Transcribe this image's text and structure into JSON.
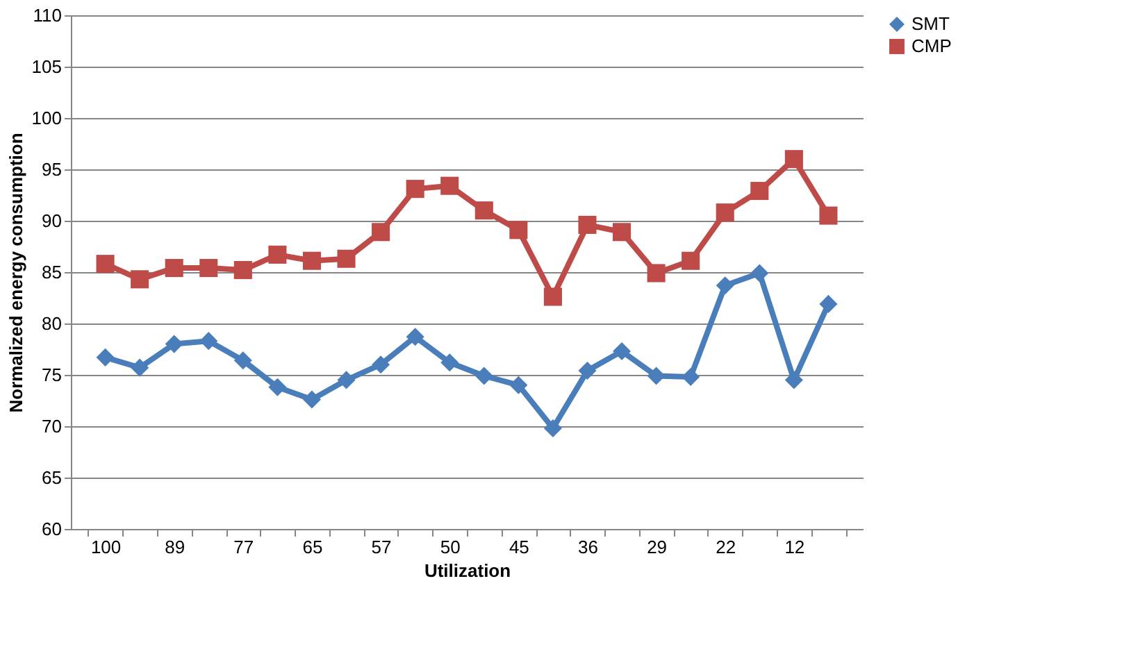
{
  "chart_data": {
    "type": "line",
    "xlabel": "Utilization",
    "ylabel": "Normalized energy consumption",
    "categories": [
      "100",
      null,
      "89",
      null,
      "77",
      null,
      "65",
      null,
      "57",
      null,
      "50",
      null,
      "45",
      null,
      "36",
      null,
      "29",
      null,
      "22",
      null,
      "12",
      null
    ],
    "series": [
      {
        "name": "SMT",
        "color": "#4a7ebb",
        "marker": "diamond",
        "values": [
          76.7,
          75.7,
          78.0,
          78.3,
          76.4,
          73.8,
          72.6,
          74.5,
          76.0,
          78.7,
          76.2,
          74.9,
          74.0,
          69.8,
          75.4,
          77.3,
          74.9,
          74.8,
          83.7,
          84.9,
          74.5,
          81.9
        ]
      },
      {
        "name": "CMP",
        "color": "#be4b48",
        "marker": "square",
        "values": [
          85.8,
          84.3,
          85.4,
          85.4,
          85.2,
          86.7,
          86.1,
          86.3,
          88.9,
          93.1,
          93.4,
          91.0,
          89.1,
          82.6,
          89.6,
          88.9,
          84.9,
          86.1,
          90.8,
          92.9,
          96.0,
          90.5
        ]
      }
    ],
    "ylim": [
      60,
      110
    ],
    "yticks": [
      60,
      65,
      70,
      75,
      80,
      85,
      90,
      95,
      100,
      105,
      110
    ],
    "grid": "y",
    "legend": "right",
    "line_style": "solid"
  }
}
